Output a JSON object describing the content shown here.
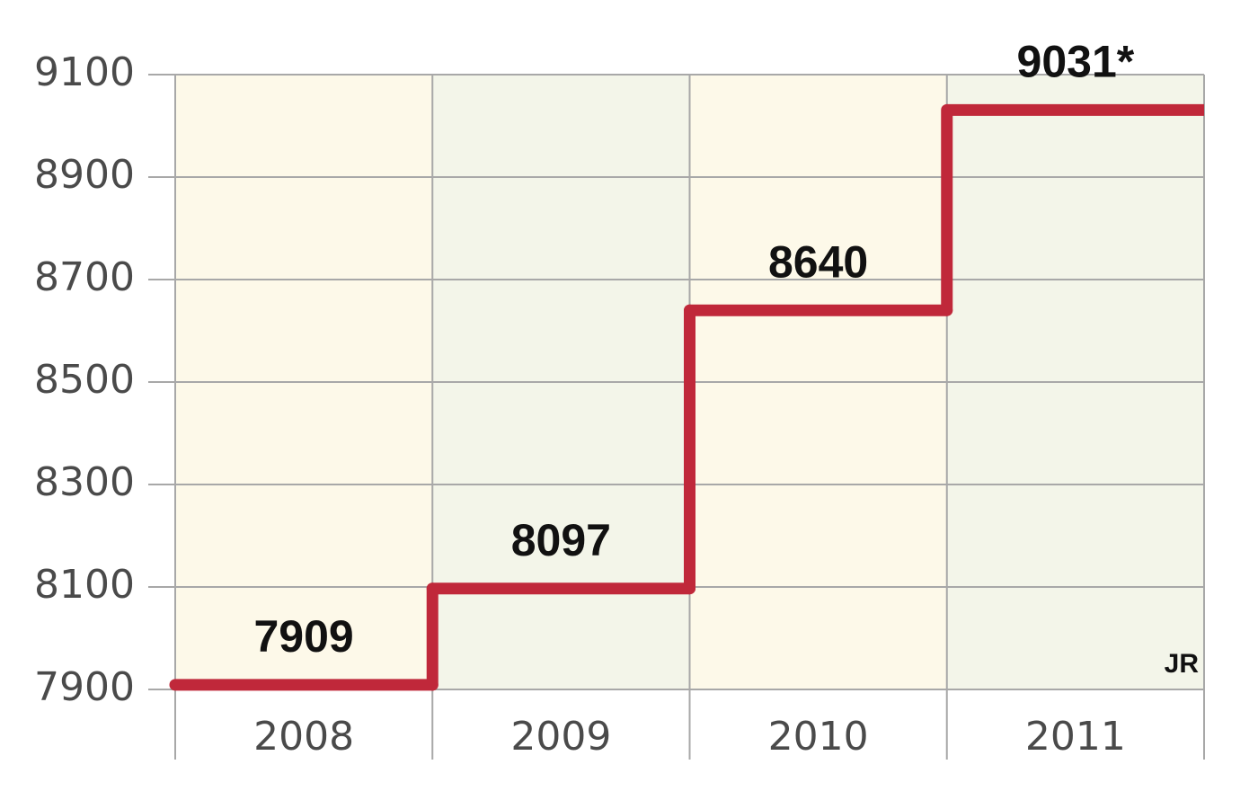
{
  "chart_data": {
    "type": "step",
    "categories": [
      "2008",
      "2009",
      "2010",
      "2011"
    ],
    "values": [
      7909,
      8097,
      8640,
      9031
    ],
    "value_labels": [
      "7909",
      "8097",
      "8640",
      "9031*"
    ],
    "color": "#c0283a",
    "band_colors": [
      "#fdf9e9",
      "#f3f5e9"
    ],
    "ylim": [
      7900,
      9100
    ],
    "yticks": [
      7900,
      8100,
      8300,
      8500,
      8700,
      8900,
      9100
    ],
    "grid": true,
    "annotation": "JR"
  }
}
